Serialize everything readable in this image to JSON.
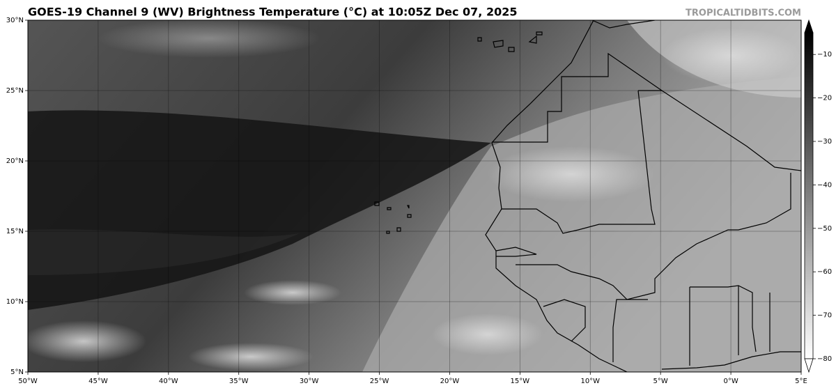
{
  "title": "GOES-19 Channel 9 (WV) Brightness Temperature (°C) at 10:05Z Dec 07, 2025",
  "watermark": "TROPICALTIDBITS.COM",
  "map": {
    "lon_ticks": [
      {
        "value": -50,
        "label": "50°W"
      },
      {
        "value": -45,
        "label": "45°W"
      },
      {
        "value": -40,
        "label": "40°W"
      },
      {
        "value": -35,
        "label": "35°W"
      },
      {
        "value": -30,
        "label": "30°W"
      },
      {
        "value": -25,
        "label": "25°W"
      },
      {
        "value": -20,
        "label": "20°W"
      },
      {
        "value": -15,
        "label": "15°W"
      },
      {
        "value": -10,
        "label": "10°W"
      },
      {
        "value": -5,
        "label": "5°W"
      },
      {
        "value": 0,
        "label": "0°W"
      },
      {
        "value": 5,
        "label": "5°E"
      }
    ],
    "lat_ticks": [
      {
        "value": 30,
        "label": "30°N"
      },
      {
        "value": 25,
        "label": "25°N"
      },
      {
        "value": 20,
        "label": "20°N"
      },
      {
        "value": 15,
        "label": "15°N"
      },
      {
        "value": 10,
        "label": "10°N"
      },
      {
        "value": 5,
        "label": "5°N"
      }
    ]
  },
  "colorbar": {
    "lim": [
      -80,
      -5
    ],
    "ticks": [
      {
        "value": -10,
        "label": "−10"
      },
      {
        "value": -20,
        "label": "−20"
      },
      {
        "value": -30,
        "label": "−30"
      },
      {
        "value": -40,
        "label": "−40"
      },
      {
        "value": -50,
        "label": "−50"
      },
      {
        "value": -60,
        "label": "−60"
      },
      {
        "value": -70,
        "label": "−70"
      },
      {
        "value": -80,
        "label": "−80"
      }
    ]
  }
}
